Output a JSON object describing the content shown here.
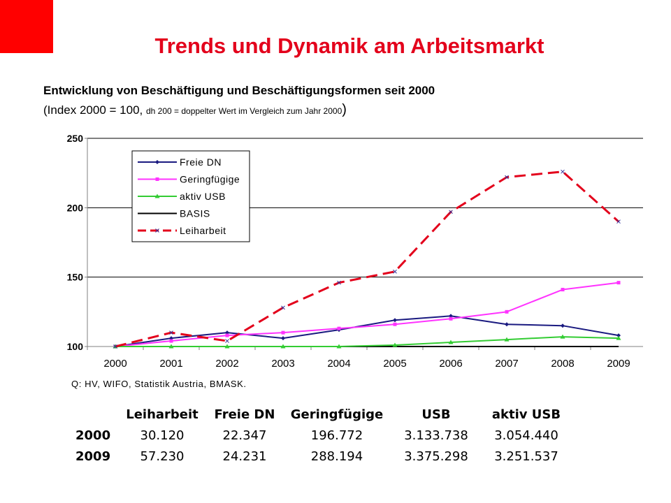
{
  "header": {
    "title": "Trends und Dynamik am Arbeitsmarkt",
    "subtitle": "Entwicklung von Beschäftigung und Beschäftigungsformen seit 2000",
    "index_open": "(",
    "index_main": "Index 2000 = 100, ",
    "index_note": "dh 200 = doppelter Wert im Vergleich zum Jahr 2000",
    "index_close": ")"
  },
  "colors": {
    "accent_red": "#e3001b",
    "corner_red": "#ff0000"
  },
  "chart_data": {
    "type": "line",
    "x": [
      "2000",
      "2001",
      "2002",
      "2003",
      "2004",
      "2005",
      "2006",
      "2007",
      "2008",
      "2009"
    ],
    "ylim": [
      100,
      250
    ],
    "yticks": [
      "100",
      "150",
      "200",
      "250"
    ],
    "grid": true,
    "legend_position": "top-left",
    "xlabel": "",
    "ylabel": "",
    "series": [
      {
        "name": "Freie DN",
        "color": "#1a1a80",
        "marker": "diamond",
        "dashed": false,
        "values": [
          100,
          106,
          110,
          106,
          112,
          119,
          122,
          116,
          115,
          108
        ]
      },
      {
        "name": "Geringfügige",
        "color": "#ff33ff",
        "marker": "square",
        "dashed": false,
        "values": [
          100,
          104,
          108,
          110,
          113,
          116,
          120,
          125,
          141,
          146
        ]
      },
      {
        "name": "aktiv USB",
        "color": "#33cc33",
        "marker": "triangle",
        "dashed": false,
        "values": [
          100,
          100,
          100,
          100,
          100,
          101,
          103,
          105,
          107,
          106
        ]
      },
      {
        "name": "BASIS",
        "color": "#000000",
        "marker": "none",
        "dashed": false,
        "values": [
          100,
          100,
          100,
          100,
          100,
          100,
          100,
          100,
          100,
          100
        ]
      },
      {
        "name": "Leiharbeit",
        "color": "#e3001b",
        "marker": "x",
        "dashed": true,
        "values": [
          100,
          110,
          104,
          128,
          146,
          154,
          197,
          222,
          226,
          190
        ]
      }
    ]
  },
  "source": "Q: HV, WIFO, Statistik Austria, BMASK.",
  "table": {
    "headers": [
      "",
      "Leiharbeit",
      "Freie DN",
      "Geringfügige",
      "USB",
      "aktiv USB"
    ],
    "rows": [
      {
        "year": "2000",
        "values": [
          "30.120",
          "22.347",
          "196.772",
          "3.133.738",
          "3.054.440"
        ]
      },
      {
        "year": "2009",
        "values": [
          "57.230",
          "24.231",
          "288.194",
          "3.375.298",
          "3.251.537"
        ]
      }
    ]
  }
}
